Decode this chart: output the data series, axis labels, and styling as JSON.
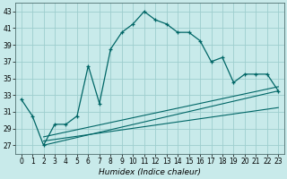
{
  "xlabel": "Humidex (Indice chaleur)",
  "xlim": [
    -0.5,
    23.5
  ],
  "ylim": [
    26,
    44
  ],
  "background_color": "#c8eaea",
  "grid_color": "#9ecece",
  "line_color": "#006666",
  "main_curve_x": [
    0,
    1,
    2,
    3,
    4,
    5,
    6,
    7,
    8,
    9,
    10,
    11,
    12,
    13,
    14,
    15,
    16,
    17,
    18,
    19,
    20,
    21,
    22,
    23
  ],
  "main_curve_y": [
    32.5,
    30.5,
    27.0,
    29.5,
    29.5,
    30.5,
    36.5,
    32.0,
    38.5,
    40.5,
    41.5,
    43.0,
    42.0,
    41.5,
    40.5,
    40.5,
    39.5,
    37.0,
    37.5,
    34.5,
    35.5,
    35.5,
    35.5,
    33.5
  ],
  "trend_lines": [
    {
      "x": [
        2,
        23
      ],
      "y": [
        27.0,
        33.5
      ]
    },
    {
      "x": [
        2,
        23
      ],
      "y": [
        27.5,
        31.5
      ]
    },
    {
      "x": [
        2,
        23
      ],
      "y": [
        28.0,
        34.0
      ]
    }
  ],
  "yticks": [
    27,
    29,
    31,
    33,
    35,
    37,
    39,
    41,
    43
  ],
  "xticks": [
    0,
    1,
    2,
    3,
    4,
    5,
    6,
    7,
    8,
    9,
    10,
    11,
    12,
    13,
    14,
    15,
    16,
    17,
    18,
    19,
    20,
    21,
    22,
    23
  ],
  "xlabel_fontsize": 6.5,
  "tick_fontsize": 5.5
}
